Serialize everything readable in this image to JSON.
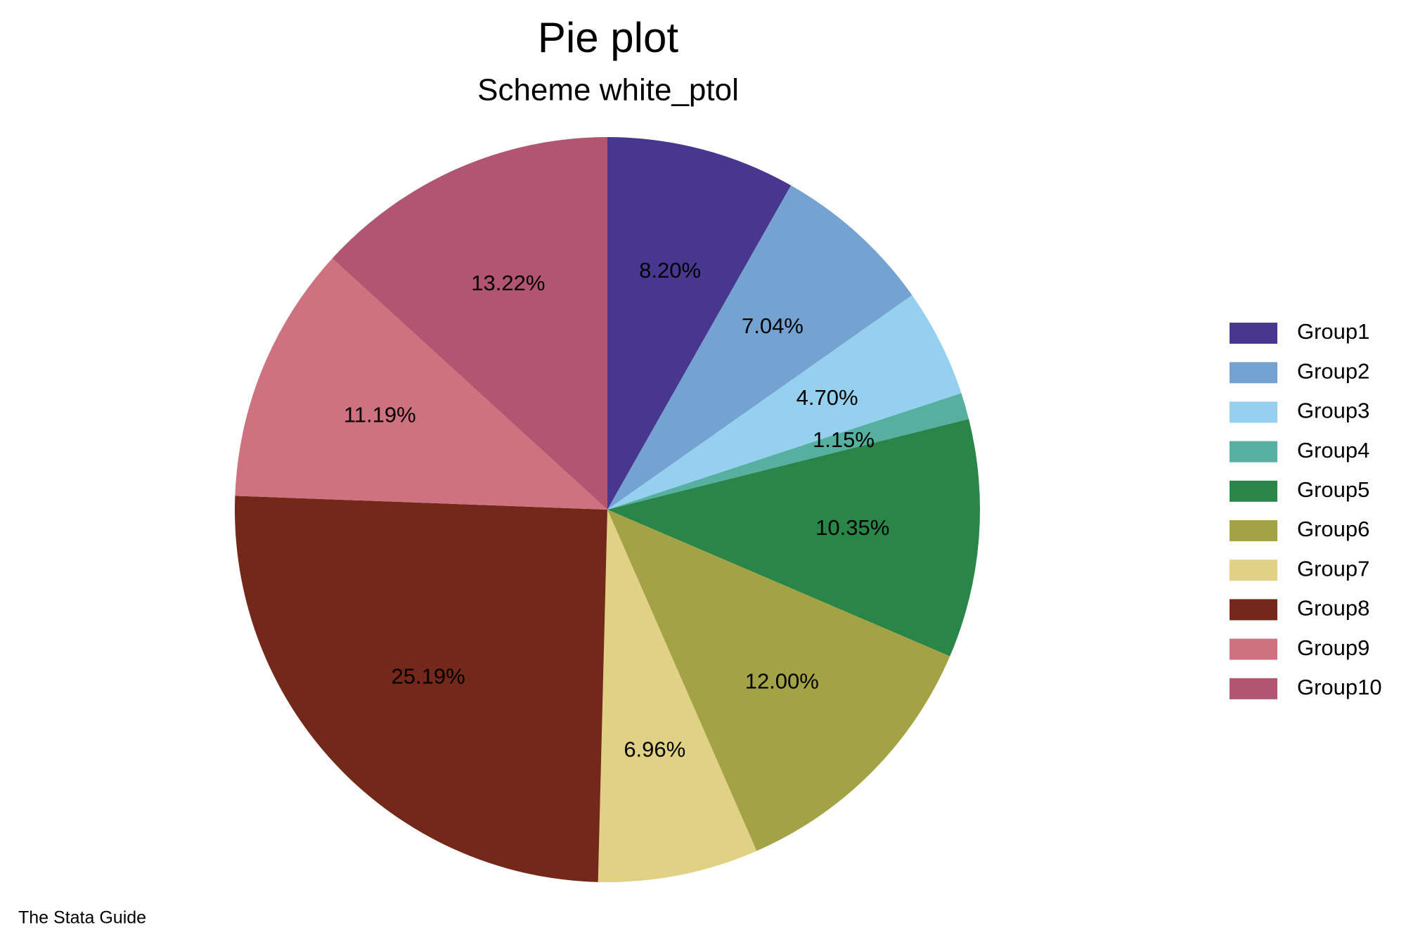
{
  "chart_data": {
    "type": "pie",
    "title": "Pie plot",
    "subtitle": "Scheme white_ptol",
    "note": "The Stata Guide",
    "categories": [
      "Group1",
      "Group2",
      "Group3",
      "Group4",
      "Group5",
      "Group6",
      "Group7",
      "Group8",
      "Group9",
      "Group10"
    ],
    "values": [
      8.2,
      7.04,
      4.7,
      1.15,
      10.35,
      12.0,
      6.96,
      25.19,
      11.19,
      13.22
    ],
    "value_labels": [
      "8.20%",
      "7.04%",
      "4.70%",
      "1.15%",
      "10.35%",
      "12.00%",
      "6.96%",
      "25.19%",
      "11.19%",
      "13.22%"
    ],
    "colors": [
      "#47378f",
      "#74a2d1",
      "#95d0ef",
      "#55b0a0",
      "#2a8548",
      "#a3a345",
      "#e0d185",
      "#73281a",
      "#cf7280",
      "#b15570"
    ],
    "legend": "right"
  }
}
